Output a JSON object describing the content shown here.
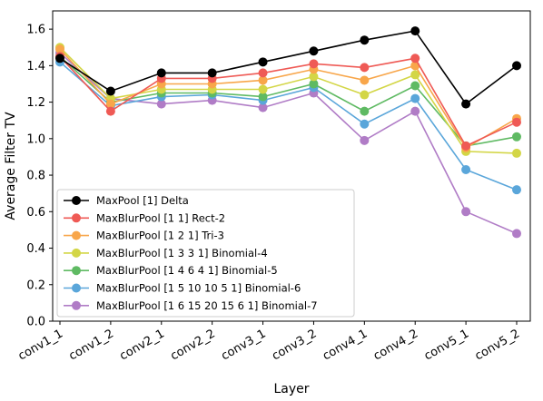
{
  "chart_data": {
    "type": "line",
    "xlabel": "Layer",
    "ylabel": "Average Filter TV",
    "categories": [
      "conv1_1",
      "conv1_2",
      "conv2_1",
      "conv2_2",
      "conv3_1",
      "conv3_2",
      "conv4_1",
      "conv4_2",
      "conv5_1",
      "conv5_2"
    ],
    "ylim": [
      0.0,
      1.7
    ],
    "yticks": [
      "0.0",
      "0.2",
      "0.4",
      "0.6",
      "0.8",
      "1.0",
      "1.2",
      "1.4",
      "1.6"
    ],
    "grid": false,
    "legend_position": "lower-left",
    "series": [
      {
        "name": "MaxPool [1] Delta",
        "color": "#000000",
        "values": [
          1.44,
          1.26,
          1.36,
          1.36,
          1.42,
          1.48,
          1.54,
          1.59,
          1.19,
          1.4
        ]
      },
      {
        "name": "MaxBlurPool [1 1] Rect-2",
        "color": "#ef5a55",
        "values": [
          1.45,
          1.15,
          1.33,
          1.33,
          1.36,
          1.41,
          1.39,
          1.44,
          0.96,
          1.09
        ]
      },
      {
        "name": "MaxBlurPool [1 2 1] Tri-3",
        "color": "#f8a64a",
        "values": [
          1.49,
          1.19,
          1.3,
          1.3,
          1.32,
          1.38,
          1.32,
          1.4,
          0.95,
          1.11
        ]
      },
      {
        "name": "MaxBlurPool [1 3 3 1] Binomial-4",
        "color": "#d3d646",
        "values": [
          1.5,
          1.22,
          1.27,
          1.27,
          1.27,
          1.34,
          1.24,
          1.35,
          0.93,
          0.92
        ]
      },
      {
        "name": "MaxBlurPool [1 4 6 4 1] Binomial-5",
        "color": "#5fba63",
        "values": [
          1.45,
          1.2,
          1.25,
          1.25,
          1.23,
          1.3,
          1.15,
          1.29,
          0.96,
          1.01
        ]
      },
      {
        "name": "MaxBlurPool [1 5 10 10 5 1] Binomial-6",
        "color": "#5aa6da",
        "values": [
          1.42,
          1.18,
          1.23,
          1.24,
          1.21,
          1.28,
          1.08,
          1.22,
          0.83,
          0.72
        ]
      },
      {
        "name": "MaxBlurPool [1 6 15 20 15 6 1] Binomial-7",
        "color": "#b07cc6",
        "values": [
          1.47,
          1.22,
          1.19,
          1.21,
          1.17,
          1.25,
          0.99,
          1.15,
          0.6,
          0.48
        ]
      }
    ]
  }
}
